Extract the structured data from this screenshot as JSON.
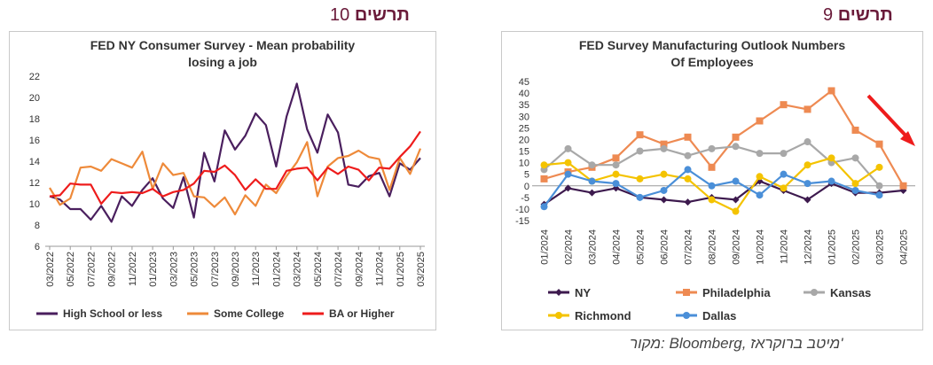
{
  "figures": {
    "left": {
      "number": "10",
      "word": "תרשים"
    },
    "right": {
      "number": "9",
      "word": "תרשים"
    }
  },
  "source": "מקור: Bloomberg, מיטב ברוקראז'",
  "colors": {
    "ny": "#3d1a4e",
    "philadelphia": "#ee8a52",
    "kansas": "#a8a8a8",
    "richmond": "#f4c300",
    "dallas": "#4a8fd8",
    "hs": "#4a1f5e",
    "college": "#ee8a3a",
    "ba": "#ee1c1c",
    "arrow": "#ee1c1c"
  },
  "chart_data": [
    {
      "type": "line",
      "title": "FED NY Consumer Survey - Mean  probability\nlosing a job",
      "ylim": [
        6,
        22
      ],
      "yticks": [
        6,
        8,
        10,
        12,
        14,
        16,
        18,
        20,
        22
      ],
      "xtick_labels": [
        "03/2022",
        "05/2022",
        "07/2022",
        "09/2022",
        "11/2022",
        "01/2023",
        "03/2023",
        "05/2023",
        "07/2023",
        "09/2023",
        "11/2023",
        "01/2024",
        "03/2024",
        "05/2024",
        "07/2024",
        "09/2024",
        "11/2024",
        "01/2025",
        "03/2025"
      ],
      "x": [
        "03/2022",
        "04/2022",
        "05/2022",
        "06/2022",
        "07/2022",
        "08/2022",
        "09/2022",
        "10/2022",
        "11/2022",
        "12/2022",
        "01/2023",
        "02/2023",
        "03/2023",
        "04/2023",
        "05/2023",
        "06/2023",
        "07/2023",
        "08/2023",
        "09/2023",
        "10/2023",
        "11/2023",
        "12/2023",
        "01/2024",
        "02/2024",
        "03/2024",
        "04/2024",
        "05/2024",
        "06/2024",
        "07/2024",
        "08/2024",
        "09/2024",
        "10/2024",
        "11/2024",
        "12/2024",
        "01/2025",
        "02/2025",
        "03/2025"
      ],
      "series": [
        {
          "name": "High School or less",
          "color_key": "hs",
          "values": [
            10.7,
            10.4,
            9.5,
            9.5,
            8.5,
            9.8,
            8.3,
            10.7,
            9.8,
            11.3,
            12.4,
            10.5,
            9.6,
            12.5,
            8.7,
            14.8,
            12.1,
            16.9,
            15.1,
            16.4,
            18.5,
            17.4,
            13.5,
            18.2,
            21.3,
            17.0,
            14.8,
            18.4,
            16.7,
            11.8,
            11.6,
            12.6,
            12.9,
            10.7,
            13.8,
            13.2,
            14.3
          ]
        },
        {
          "name": "Some College",
          "color_key": "college",
          "values": [
            11.5,
            9.9,
            10.5,
            13.4,
            13.5,
            13.1,
            14.2,
            13.8,
            13.4,
            14.9,
            11.4,
            13.8,
            12.7,
            12.9,
            10.7,
            10.6,
            9.7,
            10.6,
            9.0,
            10.8,
            9.8,
            11.8,
            11.0,
            12.6,
            13.9,
            15.8,
            10.7,
            13.5,
            14.3,
            14.5,
            15.0,
            14.4,
            14.2,
            11.3,
            14.3,
            12.8,
            15.2
          ]
        },
        {
          "name": "BA or Higher",
          "color_key": "ba",
          "values": [
            10.7,
            10.8,
            11.9,
            11.8,
            11.8,
            10.0,
            11.1,
            11.0,
            11.1,
            11.0,
            11.4,
            10.7,
            11.1,
            11.3,
            11.9,
            13.1,
            13.0,
            13.6,
            12.7,
            11.3,
            12.3,
            11.4,
            11.4,
            13.1,
            13.3,
            13.4,
            12.2,
            13.4,
            12.8,
            13.5,
            13.2,
            12.2,
            13.4,
            13.3,
            14.4,
            15.4,
            16.8
          ]
        }
      ],
      "legend": "bottom"
    },
    {
      "type": "line",
      "title": "FED Survey Manufacturing  Outlook Numbers\nOf Employees",
      "ylim": [
        -15,
        45
      ],
      "yticks": [
        -15,
        -10,
        -5,
        0,
        5,
        10,
        15,
        20,
        25,
        30,
        35,
        40,
        45
      ],
      "categories": [
        "01/2024",
        "02/2024",
        "03/2024",
        "04/2024",
        "05/2024",
        "06/2024",
        "07/2024",
        "08/2024",
        "09/2024",
        "10/2024",
        "11/2024",
        "12/2024",
        "01/2025",
        "02/2025",
        "03/2025",
        "04/2025"
      ],
      "series": [
        {
          "name": "NY",
          "color_key": "ny",
          "marker": "diamond",
          "values": [
            -8,
            -1,
            -3,
            -1,
            -5,
            -6,
            -7,
            -5,
            -6,
            2,
            -2,
            -6,
            1,
            -3,
            -3,
            -2
          ]
        },
        {
          "name": "Philadelphia",
          "color_key": "philadelphia",
          "marker": "square",
          "values": [
            3,
            6,
            8,
            12,
            22,
            18,
            21,
            8,
            21,
            28,
            35,
            33,
            41,
            24,
            18,
            0
          ]
        },
        {
          "name": "Kansas",
          "color_key": "kansas",
          "marker": "circle",
          "values": [
            7,
            16,
            9,
            9,
            15,
            16,
            13,
            16,
            17,
            14,
            14,
            19,
            10,
            12,
            0,
            null
          ]
        },
        {
          "name": "Richmond",
          "color_key": "richmond",
          "marker": "circle",
          "values": [
            9,
            10,
            2,
            5,
            3,
            5,
            3,
            -6,
            -11,
            4,
            -1,
            9,
            12,
            1,
            8,
            null
          ]
        },
        {
          "name": "Dallas",
          "color_key": "dallas",
          "marker": "circle",
          "values": [
            -9,
            5,
            2,
            1,
            -5,
            -2,
            7,
            0,
            2,
            -4,
            5,
            1,
            2,
            -2,
            -4,
            null
          ]
        }
      ],
      "legend": "bottom"
    }
  ]
}
